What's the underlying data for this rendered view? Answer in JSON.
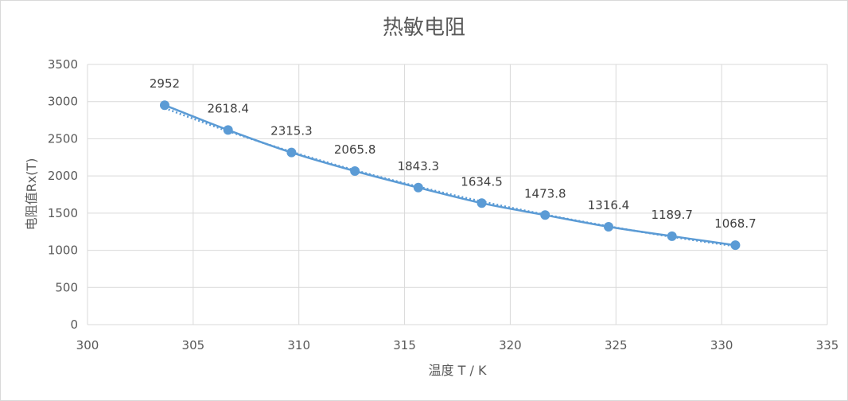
{
  "chart_data": {
    "type": "scatter",
    "title": "热敏电阻",
    "xlabel": "温度 T / K",
    "ylabel": "电阻值Rx(T)",
    "xlim": [
      300,
      335
    ],
    "ylim": [
      0,
      3500
    ],
    "xticks": [
      300,
      305,
      310,
      315,
      320,
      325,
      330,
      335
    ],
    "yticks": [
      0,
      500,
      1000,
      1500,
      2000,
      2500,
      3000,
      3500
    ],
    "grid": true,
    "legend": "none",
    "trendline": "dotted",
    "series": [
      {
        "x": [
          303.65,
          306.65,
          309.65,
          312.65,
          315.65,
          318.65,
          321.65,
          324.65,
          327.65,
          330.65
        ],
        "y": [
          2952,
          2618.4,
          2315.3,
          2065.8,
          1843.3,
          1634.5,
          1473.8,
          1316.4,
          1189.7,
          1068.7
        ],
        "labels": [
          "2952",
          "2618.4",
          "2315.3",
          "2065.8",
          "1843.3",
          "1634.5",
          "1473.8",
          "1316.4",
          "1189.7",
          "1068.7"
        ]
      }
    ],
    "colors": {
      "series": "#5b9bd5",
      "grid": "#d9d9d9",
      "text": "#595959"
    }
  }
}
